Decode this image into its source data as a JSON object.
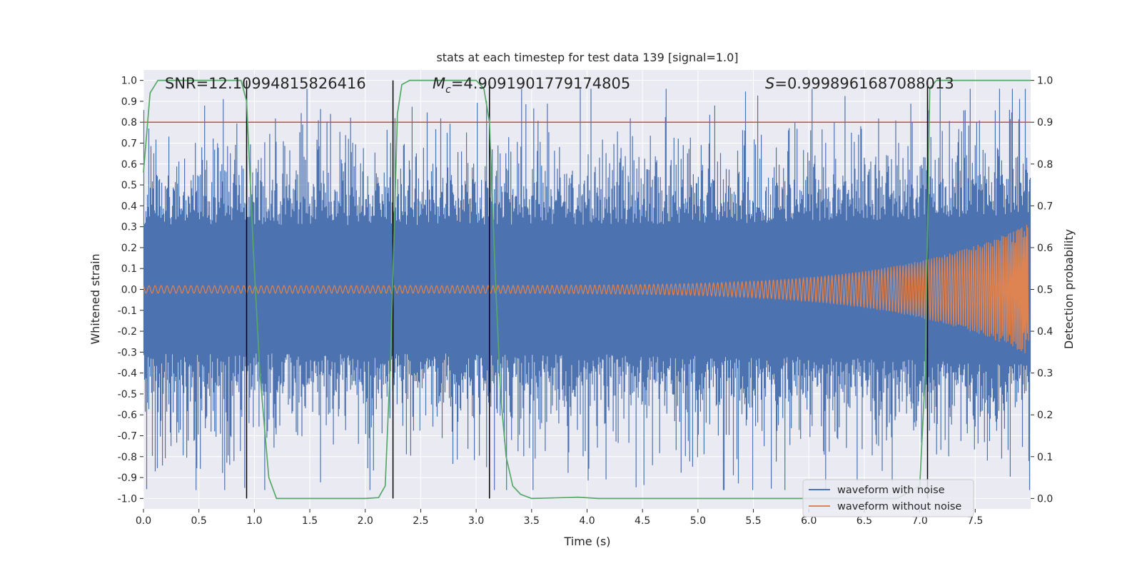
{
  "chart_data": {
    "type": "line",
    "title": "stats at each timestep for test data 139 [signal=1.0]",
    "xlabel": "Time (s)",
    "ylabel": "Whitened strain",
    "y2label": "Detection probability",
    "xlim": [
      0.0,
      8.0
    ],
    "ylim": [
      -1.05,
      1.05
    ],
    "y2lim": [
      -0.025,
      1.025
    ],
    "xticks": [
      "0.0",
      "0.5",
      "1.0",
      "1.5",
      "2.0",
      "2.5",
      "3.0",
      "3.5",
      "4.0",
      "4.5",
      "5.0",
      "5.5",
      "6.0",
      "6.5",
      "7.0",
      "7.5"
    ],
    "yticks": [
      "1.0",
      "0.9",
      "0.8",
      "0.7",
      "0.6",
      "0.5",
      "0.4",
      "0.3",
      "0.2",
      "0.1",
      "0.0",
      "-0.1",
      "-0.2",
      "-0.3",
      "-0.4",
      "-0.5",
      "-0.6",
      "-0.7",
      "-0.8",
      "-0.9",
      "-1.0"
    ],
    "y2ticks": [
      "0.0",
      "0.1",
      "0.2",
      "0.3",
      "0.4",
      "0.5",
      "0.6",
      "0.7",
      "0.8",
      "0.9",
      "1.0"
    ],
    "annotations": {
      "snr": "SNR=12.10994815826416",
      "mc_symbol": "M",
      "mc_sub": "c",
      "mc_value": "=4.9091901779174805",
      "s_symbol": "S",
      "s_value": "=0.9998961687088013"
    },
    "threshold": 0.9,
    "vlines": [
      0.93,
      2.25,
      3.12,
      7.07
    ],
    "detection_probability": {
      "x": [
        0.0,
        0.06,
        0.13,
        0.25,
        0.5,
        0.88,
        0.93,
        0.99,
        1.05,
        1.13,
        1.2,
        1.3,
        1.6,
        2.0,
        2.12,
        2.18,
        2.23,
        2.29,
        2.33,
        2.4,
        2.6,
        3.0,
        3.07,
        3.12,
        3.17,
        3.22,
        3.27,
        3.33,
        3.4,
        3.5,
        3.8,
        3.92,
        4.1,
        6.8,
        7.0,
        7.05,
        7.09,
        7.15,
        7.5,
        8.0
      ],
      "y": [
        0.78,
        0.97,
        1.0,
        1.0,
        1.0,
        1.0,
        0.95,
        0.6,
        0.3,
        0.05,
        0.0,
        0.0,
        0.0,
        0.0,
        0.002,
        0.03,
        0.35,
        0.92,
        0.99,
        1.0,
        1.0,
        1.0,
        0.98,
        0.9,
        0.55,
        0.25,
        0.1,
        0.03,
        0.01,
        0.0,
        0.002,
        0.003,
        0.0,
        0.0,
        0.03,
        0.3,
        0.98,
        1.0,
        1.0,
        1.0
      ]
    },
    "series": [
      {
        "name": "waveform with noise",
        "color": "#4c72b0",
        "description": "whitened noisy strain, dense oscillation mostly within about ±0.8, occasional peaks near ±0.95"
      },
      {
        "name": "waveform without noise",
        "color": "#dd8452",
        "description": "chirp signal, amplitude growing from about 0.02 at t=0 to about 0.3 near t=8"
      }
    ],
    "legend_location": "lower-right",
    "colors": {
      "plot_bg": "#eaeaf2",
      "grid": "#ffffff",
      "noise": "#4c72b0",
      "signal": "#dd8452",
      "probability": "#55a868",
      "threshold": "#c44e52",
      "vline": "#000000"
    }
  }
}
